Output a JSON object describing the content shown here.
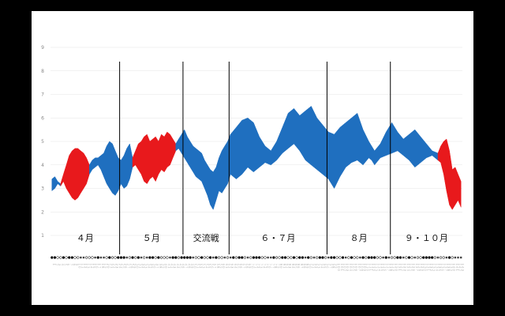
{
  "chart_data": {
    "type": "area",
    "title": "",
    "xlabel": "",
    "ylabel": "",
    "y_ticks": [
      "1",
      "2",
      "3",
      "4",
      "5",
      "6",
      "7",
      "8",
      "9"
    ],
    "ylim": [
      1,
      9
    ],
    "x_count": 143,
    "grid": true,
    "colors": {
      "up": "#1f6fbf",
      "down": "#e8191c",
      "divider": "#000000",
      "grid": "#e5e5e5"
    },
    "periods": [
      {
        "label": "４月",
        "start": 0,
        "end": 24
      },
      {
        "label": "５月",
        "start": 24,
        "end": 46
      },
      {
        "label": "交流戦",
        "start": 46,
        "end": 62
      },
      {
        "label": "６・７月",
        "start": 62,
        "end": 96
      },
      {
        "label": "８月",
        "start": 96,
        "end": 118
      },
      {
        "label": "９・１０月",
        "start": 118,
        "end": 143
      }
    ],
    "dividers": [
      24,
      46,
      62,
      96,
      118
    ],
    "series": [
      {
        "color": "#1f6fbf",
        "x": [
          0,
          1,
          2,
          3
        ],
        "lower": [
          2.9,
          3.0,
          3.2,
          3.1
        ],
        "upper": [
          3.4,
          3.5,
          3.3,
          3.2
        ]
      },
      {
        "color": "#e8191c",
        "x": [
          3,
          4,
          5,
          6,
          7,
          8,
          9,
          10,
          11,
          12,
          13
        ],
        "lower": [
          3.1,
          3.3,
          3.0,
          2.8,
          2.6,
          2.5,
          2.6,
          2.8,
          3.0,
          3.2,
          3.6
        ],
        "upper": [
          3.2,
          3.6,
          4.0,
          4.4,
          4.6,
          4.7,
          4.7,
          4.6,
          4.5,
          4.3,
          4.0
        ]
      },
      {
        "color": "#1f6fbf",
        "x": [
          13,
          14,
          15,
          16,
          17,
          18,
          19,
          20,
          21,
          22,
          23,
          24,
          25,
          26,
          27,
          28
        ],
        "lower": [
          3.6,
          3.8,
          3.9,
          4.0,
          3.8,
          3.5,
          3.2,
          3.0,
          2.8,
          2.7,
          2.9,
          3.2,
          3.0,
          3.1,
          3.4,
          3.9
        ],
        "upper": [
          4.0,
          4.2,
          4.3,
          4.3,
          4.4,
          4.5,
          4.8,
          5.0,
          4.9,
          4.6,
          4.3,
          4.2,
          4.4,
          4.7,
          4.9,
          4.3
        ]
      },
      {
        "color": "#e8191c",
        "x": [
          28,
          29,
          30,
          31,
          32,
          33,
          34,
          35,
          36,
          37,
          38,
          39,
          40,
          41,
          42,
          43
        ],
        "lower": [
          3.9,
          4.0,
          3.8,
          3.6,
          3.3,
          3.2,
          3.4,
          3.5,
          3.3,
          3.6,
          3.8,
          3.7,
          3.9,
          4.0,
          4.3,
          4.6
        ],
        "upper": [
          4.3,
          4.6,
          4.9,
          5.0,
          5.2,
          5.3,
          5.0,
          5.1,
          5.2,
          5.0,
          5.3,
          5.2,
          5.4,
          5.3,
          5.1,
          4.9
        ]
      },
      {
        "color": "#1f6fbf",
        "x": [
          43,
          44,
          45,
          46,
          47,
          48,
          49,
          50,
          51,
          52,
          53,
          54,
          55,
          56,
          57,
          58,
          59,
          60,
          61,
          62
        ],
        "lower": [
          4.6,
          4.7,
          4.5,
          4.3,
          4.1,
          3.9,
          3.7,
          3.5,
          3.4,
          3.3,
          3.0,
          2.7,
          2.3,
          2.1,
          2.5,
          2.9,
          2.8,
          3.0,
          3.2,
          3.6
        ],
        "upper": [
          4.9,
          5.1,
          5.3,
          5.5,
          5.2,
          5.0,
          4.8,
          4.7,
          4.6,
          4.5,
          4.2,
          4.0,
          3.8,
          3.7,
          3.9,
          4.3,
          4.6,
          4.8,
          5.0,
          5.3
        ]
      },
      {
        "color": "#1f6fbf",
        "x": [
          62,
          64,
          66,
          68,
          70,
          72,
          74,
          76,
          78,
          80,
          82,
          84,
          86,
          88,
          90,
          92,
          94,
          96
        ],
        "lower": [
          3.6,
          3.4,
          3.6,
          3.9,
          3.7,
          3.9,
          4.1,
          4.0,
          4.2,
          4.5,
          4.7,
          4.9,
          4.6,
          4.2,
          4.0,
          3.8,
          3.6,
          3.4
        ],
        "upper": [
          5.3,
          5.6,
          5.9,
          6.0,
          5.8,
          5.2,
          4.8,
          4.6,
          5.0,
          5.6,
          6.2,
          6.4,
          6.1,
          6.3,
          6.5,
          6.0,
          5.7,
          5.4
        ]
      },
      {
        "color": "#1f6fbf",
        "x": [
          96,
          98,
          100,
          102,
          104,
          106,
          108,
          110,
          111,
          112,
          114,
          116,
          118
        ],
        "lower": [
          3.4,
          3.0,
          3.5,
          3.9,
          4.1,
          4.2,
          4.0,
          4.3,
          4.2,
          4.0,
          4.3,
          4.4,
          4.5
        ],
        "upper": [
          5.4,
          5.3,
          5.6,
          5.8,
          6.0,
          6.2,
          5.5,
          5.0,
          4.8,
          4.6,
          4.9,
          5.4,
          5.8
        ]
      },
      {
        "color": "#1f6fbf",
        "x": [
          118,
          120,
          122,
          124,
          126,
          128,
          130,
          132,
          134
        ],
        "lower": [
          4.5,
          4.6,
          4.4,
          4.2,
          3.9,
          4.1,
          4.3,
          4.4,
          4.2
        ],
        "upper": [
          5.8,
          5.4,
          5.1,
          5.3,
          5.5,
          5.2,
          4.9,
          4.6,
          4.5
        ]
      },
      {
        "color": "#e8191c",
        "x": [
          134,
          135,
          136,
          137,
          138,
          139,
          140,
          141,
          142
        ],
        "lower": [
          4.2,
          4.1,
          3.6,
          2.9,
          2.3,
          2.1,
          2.3,
          2.5,
          2.2
        ],
        "upper": [
          4.5,
          4.8,
          5.0,
          5.1,
          4.6,
          3.8,
          3.9,
          3.6,
          3.3
        ]
      }
    ],
    "game_labels": [
      "１",
      "２",
      "３",
      "４",
      "５",
      "６",
      "７",
      "８",
      "９",
      "１０",
      "１１",
      "１２",
      "１３",
      "１４",
      "１５",
      "１６",
      "１７",
      "１８",
      "１９",
      "２０",
      "２１",
      "２２",
      "２３",
      "２４",
      "２５",
      "２６",
      "２７",
      "２８",
      "２９",
      "３０",
      "３１",
      "３２",
      "３３",
      "３４",
      "３５",
      "３６",
      "３７",
      "３８",
      "３９",
      "４０",
      "４１",
      "４２",
      "４３",
      "４４",
      "４５",
      "４６",
      "４７",
      "４８",
      "４９",
      "５０",
      "５１",
      "５２",
      "５３",
      "５４",
      "５５",
      "５６",
      "５７",
      "５８",
      "５９",
      "６０",
      "６１",
      "６２",
      "６３",
      "６４",
      "６５",
      "６６",
      "６７",
      "６８",
      "６９",
      "７０",
      "７１",
      "７２",
      "７３",
      "７４",
      "７５",
      "７６",
      "７７",
      "７８",
      "７９",
      "８０",
      "８１",
      "８２",
      "８３",
      "８４",
      "８５",
      "８６",
      "８７",
      "８８",
      "８９",
      "９０",
      "９１",
      "９２",
      "９３",
      "９４",
      "９５",
      "９６",
      "９７",
      "９８",
      "９９",
      "１００",
      "１０１",
      "１０２",
      "１０３",
      "１０４",
      "１０５",
      "１０６",
      "１０７",
      "１０８",
      "１０９",
      "１１０",
      "１１１",
      "１１２",
      "１１３",
      "１１４",
      "１１５",
      "１１６",
      "１１７",
      "１１８",
      "１１９",
      "１２０",
      "１２１",
      "１２２",
      "１２３",
      "１２４",
      "１２５",
      "１２６",
      "１２７",
      "１２８",
      "１２９",
      "１３０",
      "１３１",
      "１３２",
      "１３３",
      "１３４",
      "１３５",
      "１３６",
      "１３７",
      "１３８",
      "１３９",
      "１４０",
      "１４１",
      "１４２",
      "１４３"
    ],
    "results": "WWLLWLWWLLOOLLLOWOOLWLLWWWOLWLWOLOWWLWLLLOWWLWWWWOLLWLLWOWLLOLOWLWWLOLWWWLLOOWLLWWLLWLWWOWLOLWWLOWWLLWOLWLLOWLWWWLLOWOLLWWOLWLOLLWWWWLOLLOWL"
  }
}
